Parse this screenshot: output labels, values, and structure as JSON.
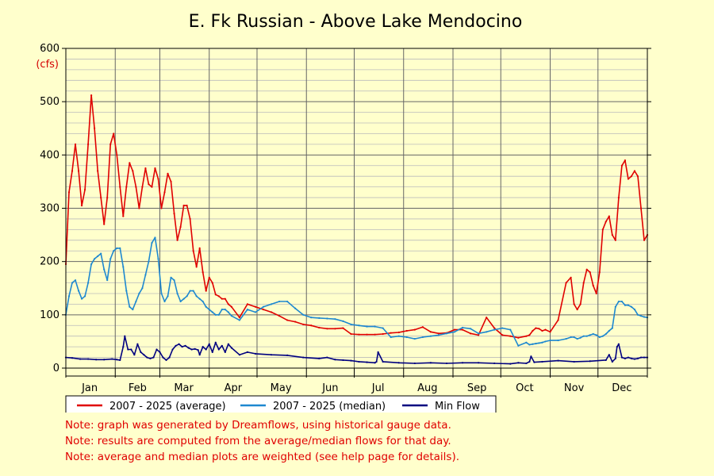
{
  "chart_data": {
    "type": "line",
    "title": "E. Fk Russian - Above Lake Mendocino",
    "y_unit": "(cfs)",
    "ylim": [
      0,
      600
    ],
    "yticks": [
      0,
      100,
      200,
      300,
      400,
      500,
      600
    ],
    "xlim": [
      1,
      366
    ],
    "x_tick_labels": [
      "Jan",
      "Feb",
      "Mar",
      "Apr",
      "May",
      "Jun",
      "Jul",
      "Aug",
      "Sep",
      "Oct",
      "Nov",
      "Dec"
    ],
    "x_day_of_year_for_labels": [
      16,
      46,
      75,
      106,
      136,
      167,
      197,
      228,
      259,
      289,
      320,
      350
    ],
    "x_month_starts": [
      1,
      32,
      60,
      91,
      121,
      152,
      182,
      213,
      244,
      274,
      305,
      335,
      366
    ],
    "grid": true,
    "legend_position": "bottom",
    "series": [
      {
        "name": "2007 - 2025 (average)",
        "color": "#e00000",
        "x": [
          1,
          3,
          5,
          7,
          9,
          11,
          13,
          15,
          17,
          19,
          21,
          23,
          25,
          27,
          29,
          31,
          33,
          35,
          37,
          39,
          41,
          43,
          45,
          47,
          49,
          51,
          53,
          55,
          57,
          59,
          61,
          63,
          65,
          67,
          69,
          71,
          73,
          75,
          77,
          79,
          81,
          83,
          85,
          87,
          89,
          91,
          93,
          95,
          97,
          99,
          101,
          103,
          105,
          110,
          115,
          120,
          125,
          130,
          135,
          140,
          145,
          150,
          155,
          160,
          165,
          170,
          175,
          180,
          185,
          190,
          195,
          200,
          205,
          210,
          215,
          220,
          225,
          230,
          235,
          240,
          245,
          250,
          255,
          260,
          265,
          270,
          275,
          280,
          285,
          290,
          292,
          294,
          296,
          298,
          300,
          302,
          305,
          310,
          315,
          318,
          320,
          322,
          324,
          326,
          328,
          330,
          332,
          334,
          336,
          338,
          340,
          342,
          344,
          346,
          348,
          350,
          352,
          354,
          356,
          358,
          360,
          362,
          364,
          366
        ],
        "values": [
          195,
          330,
          370,
          420,
          370,
          305,
          335,
          420,
          512,
          450,
          370,
          320,
          270,
          320,
          420,
          440,
          400,
          340,
          285,
          340,
          385,
          370,
          340,
          300,
          340,
          375,
          345,
          340,
          375,
          355,
          300,
          330,
          365,
          350,
          290,
          240,
          265,
          305,
          305,
          280,
          220,
          190,
          225,
          180,
          145,
          170,
          160,
          138,
          135,
          130,
          130,
          120,
          115,
          95,
          120,
          115,
          110,
          105,
          98,
          90,
          87,
          82,
          80,
          76,
          74,
          74,
          75,
          64,
          63,
          63,
          63,
          64,
          66,
          67,
          70,
          72,
          77,
          68,
          65,
          66,
          72,
          72,
          65,
          62,
          95,
          75,
          62,
          60,
          57,
          60,
          62,
          70,
          75,
          74,
          70,
          72,
          68,
          90,
          160,
          170,
          120,
          110,
          120,
          160,
          185,
          180,
          155,
          140,
          180,
          260,
          275,
          285,
          250,
          240,
          320,
          380,
          390,
          355,
          360,
          370,
          360,
          300,
          240,
          250
        ]
      },
      {
        "name": "2007 - 2025 (median)",
        "color": "#1e88d0",
        "x": [
          1,
          3,
          5,
          7,
          9,
          11,
          13,
          15,
          17,
          19,
          21,
          23,
          25,
          27,
          29,
          31,
          33,
          35,
          37,
          39,
          41,
          43,
          45,
          47,
          49,
          51,
          53,
          55,
          57,
          59,
          61,
          63,
          65,
          67,
          69,
          71,
          73,
          75,
          77,
          79,
          81,
          83,
          85,
          87,
          89,
          91,
          93,
          95,
          97,
          99,
          101,
          103,
          105,
          110,
          115,
          120,
          125,
          130,
          135,
          140,
          145,
          150,
          155,
          160,
          165,
          170,
          175,
          180,
          185,
          190,
          195,
          200,
          205,
          210,
          215,
          220,
          225,
          230,
          235,
          240,
          245,
          250,
          255,
          260,
          265,
          270,
          275,
          280,
          285,
          290,
          292,
          294,
          296,
          298,
          300,
          302,
          305,
          310,
          315,
          318,
          320,
          322,
          324,
          326,
          328,
          330,
          332,
          334,
          336,
          338,
          340,
          342,
          344,
          346,
          348,
          350,
          352,
          354,
          356,
          358,
          360,
          362,
          364,
          366
        ],
        "values": [
          100,
          135,
          160,
          165,
          145,
          130,
          135,
          160,
          195,
          205,
          210,
          215,
          185,
          165,
          205,
          220,
          225,
          225,
          190,
          145,
          115,
          110,
          125,
          140,
          150,
          175,
          200,
          235,
          245,
          205,
          140,
          125,
          135,
          170,
          165,
          140,
          125,
          130,
          135,
          145,
          145,
          135,
          130,
          125,
          115,
          110,
          105,
          100,
          100,
          110,
          110,
          105,
          98,
          90,
          110,
          105,
          115,
          120,
          125,
          125,
          112,
          100,
          95,
          94,
          93,
          92,
          88,
          82,
          80,
          78,
          78,
          75,
          58,
          60,
          58,
          55,
          58,
          60,
          62,
          65,
          68,
          76,
          74,
          65,
          68,
          72,
          75,
          72,
          42,
          48,
          44,
          45,
          46,
          47,
          48,
          50,
          52,
          52,
          55,
          58,
          58,
          55,
          57,
          60,
          60,
          62,
          64,
          62,
          58,
          60,
          64,
          70,
          75,
          115,
          125,
          125,
          118,
          118,
          115,
          110,
          100,
          98,
          96,
          95
        ]
      },
      {
        "name": "Min Flow",
        "color": "#000080",
        "x": [
          1,
          5,
          10,
          15,
          20,
          25,
          30,
          33,
          35,
          37,
          38,
          40,
          42,
          44,
          46,
          48,
          50,
          52,
          54,
          56,
          58,
          60,
          62,
          64,
          66,
          68,
          70,
          72,
          74,
          76,
          78,
          80,
          82,
          84,
          85,
          87,
          89,
          91,
          93,
          95,
          97,
          99,
          101,
          103,
          105,
          110,
          115,
          120,
          130,
          140,
          150,
          160,
          165,
          170,
          175,
          180,
          185,
          190,
          195,
          196,
          197,
          200,
          210,
          220,
          230,
          240,
          250,
          260,
          270,
          280,
          285,
          290,
          292,
          293,
          295,
          300,
          310,
          320,
          330,
          340,
          342,
          344,
          346,
          347,
          348,
          350,
          352,
          354,
          356,
          358,
          360,
          362,
          364,
          366
        ],
        "values": [
          20,
          19,
          17,
          17,
          16,
          16,
          17,
          16,
          15,
          40,
          60,
          35,
          35,
          25,
          45,
          30,
          25,
          20,
          18,
          20,
          35,
          30,
          20,
          15,
          20,
          35,
          42,
          45,
          40,
          42,
          38,
          35,
          36,
          34,
          25,
          40,
          35,
          45,
          30,
          48,
          35,
          42,
          30,
          45,
          38,
          25,
          30,
          27,
          25,
          24,
          20,
          18,
          20,
          16,
          15,
          14,
          12,
          11,
          10,
          12,
          30,
          12,
          10,
          9,
          10,
          9,
          10,
          10,
          9,
          8,
          10,
          9,
          12,
          22,
          11,
          12,
          14,
          12,
          13,
          15,
          25,
          12,
          18,
          40,
          45,
          20,
          18,
          20,
          18,
          17,
          18,
          20,
          20,
          20
        ]
      }
    ]
  },
  "notes": [
    "Note: graph was generated by Dreamflows, using historical gauge data.",
    "Note: results are computed from the average/median flows for that day.",
    "Note: average and median plots are weighted (see help page for details)."
  ]
}
